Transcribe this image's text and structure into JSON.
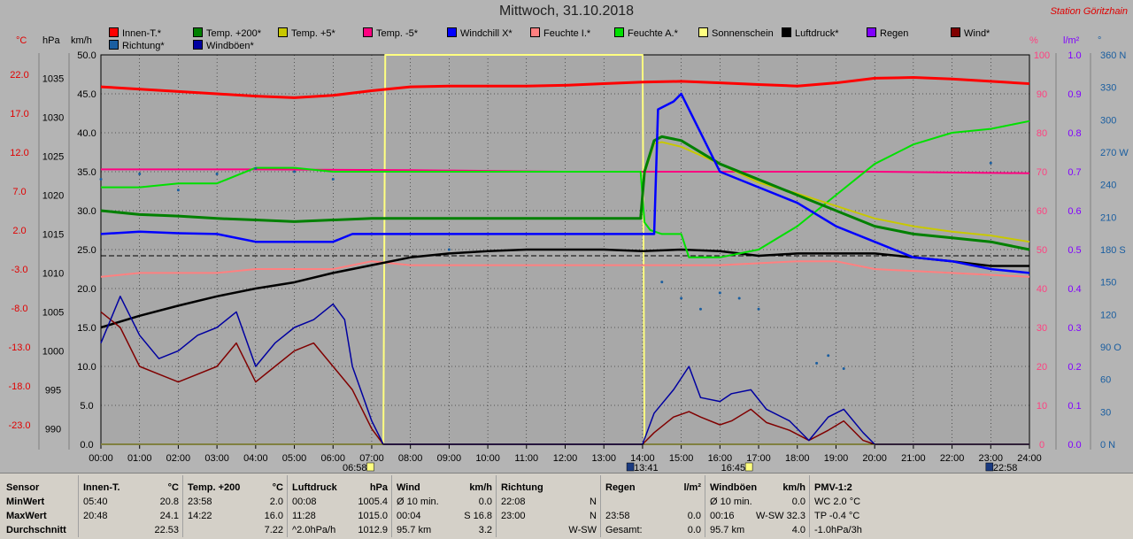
{
  "header": {
    "title": "Mittwoch, 31.10.2018",
    "station": "Station Göritzhain"
  },
  "legend": [
    {
      "label": "Innen-T.*",
      "color": "#ff0000"
    },
    {
      "label": "Temp. +200*",
      "color": "#008000"
    },
    {
      "label": "Temp. +5*",
      "color": "#c8c800"
    },
    {
      "label": "Temp. -5*",
      "color": "#ff0080"
    },
    {
      "label": "Windchill X*",
      "color": "#0000ff"
    },
    {
      "label": "Feuchte I.*",
      "color": "#ff8080"
    },
    {
      "label": "Feuchte A.*",
      "color": "#00e000"
    },
    {
      "label": "Sonnenschein",
      "color": "#ffff80"
    },
    {
      "label": "Luftdruck*",
      "color": "#000000"
    },
    {
      "label": "Regen",
      "color": "#8000ff"
    },
    {
      "label": "Wind*",
      "color": "#800000"
    },
    {
      "label": "Richtung*",
      "color": "#1a5ea0"
    },
    {
      "label": "Windböen*",
      "color": "#0000a0"
    }
  ],
  "axis_heads": {
    "celsius": "°C",
    "hpa": "hPa",
    "kmh": "km/h",
    "percent": "%",
    "rain": "l/m²",
    "degree": "°"
  },
  "chart_data": {
    "type": "line",
    "x_range": [
      "00:00",
      "24:00"
    ],
    "x_ticks": [
      "00:00",
      "01:00",
      "02:00",
      "03:00",
      "04:00",
      "05:00",
      "06:00",
      "07:00",
      "08:00",
      "09:00",
      "10:00",
      "11:00",
      "12:00",
      "13:00",
      "14:00",
      "15:00",
      "16:00",
      "17:00",
      "18:00",
      "19:00",
      "20:00",
      "21:00",
      "22:00",
      "23:00",
      "24:00"
    ],
    "sun_markers": [
      "06:58",
      "13:41",
      "16:45",
      "22:58"
    ],
    "axes": {
      "temperature_c": {
        "ticks": [
          "22.0",
          "17.0",
          "12.0",
          "7.0",
          "2.0",
          "-3.0",
          "-8.0",
          "-13.0",
          "-18.0",
          "-23.0"
        ],
        "range": [
          -23.0,
          27.0
        ]
      },
      "pressure_hpa": {
        "ticks": [
          "1035",
          "1030",
          "1025",
          "1020",
          "1015",
          "1010",
          "1005",
          "1000",
          "995",
          "990"
        ],
        "range": [
          990,
          1040
        ]
      },
      "wind_kmh": {
        "ticks": [
          "50.0",
          "45.0",
          "40.0",
          "35.0",
          "30.0",
          "25.0",
          "20.0",
          "15.0",
          "10.0",
          "5.0",
          "0.0"
        ],
        "range": [
          0,
          50
        ]
      },
      "humidity_pct": {
        "ticks": [
          "100",
          "90",
          "80",
          "70",
          "60",
          "50",
          "40",
          "30",
          "20",
          "10",
          "0"
        ],
        "range": [
          0,
          100
        ]
      },
      "rain_lm2": {
        "ticks": [
          "1.0",
          "0.9",
          "0.8",
          "0.7",
          "0.6",
          "0.5",
          "0.4",
          "0.3",
          "0.2",
          "0.1",
          "0.0"
        ],
        "range": [
          0,
          1.0
        ]
      },
      "direction_deg": {
        "ticks": [
          "360 N",
          "330",
          "300",
          "270 W",
          "240",
          "210",
          "180 S",
          "150",
          "120",
          "90 O",
          "60",
          "30",
          "0 N"
        ],
        "range": [
          0,
          360
        ]
      }
    },
    "series": [
      {
        "name": "Innen-T.*",
        "axis": "temperature_c",
        "color": "#ff0000",
        "x": [
          0,
          1,
          2,
          3,
          4,
          5,
          6,
          7,
          8,
          9,
          10,
          11,
          12,
          13,
          14,
          15,
          16,
          17,
          18,
          19,
          20,
          21,
          22,
          23,
          24
        ],
        "y": [
          22.9,
          22.6,
          22.3,
          22.0,
          21.7,
          21.5,
          21.8,
          22.4,
          22.9,
          23.0,
          23.0,
          23.0,
          23.1,
          23.3,
          23.5,
          23.6,
          23.4,
          23.2,
          23.0,
          23.4,
          24.0,
          24.1,
          23.9,
          23.6,
          23.3
        ]
      },
      {
        "name": "Temp. +200*",
        "axis": "temperature_c",
        "color": "#008000",
        "x": [
          0,
          1,
          2,
          3,
          4,
          5,
          6,
          7,
          8,
          9,
          10,
          11,
          12,
          13,
          13.95,
          14.05,
          14.3,
          14.5,
          15,
          16,
          17,
          18,
          19,
          20,
          21,
          22,
          23,
          24
        ],
        "y": [
          7.0,
          6.5,
          6.3,
          6.0,
          5.8,
          5.6,
          5.8,
          6.0,
          6.0,
          6.0,
          6.0,
          6.0,
          6.0,
          6.0,
          6.0,
          12.0,
          16.0,
          16.5,
          16.0,
          13.0,
          11.0,
          9.0,
          7.0,
          5.0,
          4.0,
          3.5,
          3.0,
          2.0
        ]
      },
      {
        "name": "Temp. +5*",
        "axis": "temperature_c",
        "color": "#c8c800",
        "x": [
          0,
          1,
          2,
          3,
          4,
          5,
          6,
          7,
          8,
          9,
          10,
          11,
          12,
          13,
          13.95,
          14.05,
          14.3,
          14.5,
          15,
          16,
          17,
          18,
          19,
          20,
          21,
          22,
          23,
          24
        ],
        "y": [
          7.0,
          6.5,
          6.3,
          6.0,
          5.8,
          5.6,
          5.8,
          6.0,
          6.0,
          6.0,
          6.0,
          6.0,
          6.0,
          6.0,
          6.0,
          11.8,
          15.6,
          15.8,
          15.2,
          13.0,
          10.6,
          9.2,
          7.6,
          6.0,
          5.0,
          4.3,
          3.8,
          3.0
        ]
      },
      {
        "name": "Temp. -5*",
        "axis": "temperature_c",
        "color": "#ff0080",
        "x": [
          0,
          4,
          8,
          12,
          16,
          20,
          24
        ],
        "y": [
          12.3,
          12.3,
          12.2,
          12.0,
          12.0,
          12.0,
          11.8
        ]
      },
      {
        "name": "Windchill X*",
        "axis": "temperature_c",
        "color": "#0000ff",
        "x": [
          0,
          1,
          2,
          3,
          4,
          5,
          6,
          6.5,
          7,
          10,
          13,
          14.3,
          14.4,
          14.8,
          15,
          15.4,
          16,
          17,
          18,
          19,
          20,
          21,
          22,
          23,
          24
        ],
        "y": [
          4.0,
          4.3,
          4.1,
          4.0,
          3.0,
          3.0,
          3.0,
          4.0,
          4.0,
          4.0,
          4.0,
          4.0,
          20.0,
          21.0,
          22.0,
          18.0,
          12.0,
          10.0,
          8.0,
          5.0,
          3.0,
          1.0,
          0.5,
          -0.5,
          -1.0
        ]
      },
      {
        "name": "Feuchte I.*",
        "axis": "humidity_pct",
        "color": "#ff8080",
        "x": [
          0,
          1,
          2,
          3,
          4,
          5,
          6,
          7,
          8,
          10,
          12,
          14,
          16,
          18,
          19,
          20,
          22,
          24
        ],
        "y": [
          43,
          44,
          44,
          44,
          45,
          45,
          45,
          47,
          46,
          46,
          46,
          46,
          46,
          47,
          47,
          45,
          44,
          43
        ]
      },
      {
        "name": "Feuchte A.*",
        "axis": "humidity_pct",
        "color": "#00e000",
        "x": [
          0,
          1,
          2,
          3,
          4,
          5,
          6,
          7,
          8,
          10,
          12,
          13.95,
          14.05,
          14.2,
          14.5,
          15,
          15.2,
          16,
          17,
          18,
          19,
          20,
          21,
          22,
          23,
          24
        ],
        "y": [
          66,
          66,
          67,
          67,
          71,
          71,
          70,
          70,
          70,
          70,
          70,
          70,
          57,
          55,
          54,
          54,
          48,
          48,
          50,
          56,
          64,
          72,
          77,
          80,
          81,
          83
        ]
      },
      {
        "name": "Sonnenschein",
        "axis": "wind_kmh",
        "color": "#ffff80",
        "x": [
          0,
          7.3,
          7.35,
          14.0,
          14.05,
          24
        ],
        "y": [
          0,
          0,
          50,
          50,
          0,
          0
        ]
      },
      {
        "name": "Luftdruck*",
        "axis": "pressure_hpa",
        "color": "#000000",
        "x": [
          0,
          1,
          2,
          3,
          4,
          5,
          6,
          7,
          8,
          9,
          10,
          11,
          12,
          13,
          14,
          15,
          16,
          17,
          18,
          19,
          20,
          21,
          22,
          23,
          24
        ],
        "y": [
          1005.0,
          1006.5,
          1007.8,
          1009.0,
          1010.0,
          1010.8,
          1012.0,
          1013.0,
          1014.0,
          1014.5,
          1014.8,
          1015.0,
          1015.0,
          1015.0,
          1014.8,
          1015.0,
          1014.8,
          1014.2,
          1014.5,
          1014.5,
          1014.5,
          1014.0,
          1013.5,
          1012.9,
          1012.9
        ]
      },
      {
        "name": "Wind*",
        "axis": "wind_kmh",
        "color": "#800000",
        "x": [
          0,
          0.5,
          1,
          1.5,
          2,
          2.5,
          3,
          3.5,
          4,
          4.5,
          5,
          5.5,
          6,
          6.5,
          7,
          7.3,
          8,
          10,
          14,
          14.3,
          14.8,
          15.2,
          15.5,
          16,
          16.3,
          16.8,
          17.2,
          17.8,
          18.3,
          18.8,
          19.2,
          19.7,
          20,
          24
        ],
        "y": [
          17,
          15,
          10,
          9,
          8,
          9,
          10,
          13,
          8,
          10,
          12,
          13,
          10,
          7,
          2,
          0,
          0,
          0,
          0,
          1.5,
          3.5,
          4.2,
          3.5,
          2.5,
          3.0,
          4.5,
          2.8,
          1.8,
          0.5,
          1.8,
          3.0,
          0.5,
          0,
          0
        ]
      },
      {
        "name": "Windböen*",
        "axis": "wind_kmh",
        "color": "#0000a0",
        "x": [
          0,
          0.5,
          1,
          1.5,
          2,
          2.5,
          3,
          3.5,
          4,
          4.5,
          5,
          5.5,
          6,
          6.3,
          6.5,
          7,
          7.3,
          8,
          10,
          14,
          14.3,
          14.8,
          15.2,
          15.5,
          16,
          16.3,
          16.8,
          17.2,
          17.8,
          18.3,
          18.8,
          19.2,
          19.7,
          20,
          24
        ],
        "y": [
          13,
          19,
          14,
          11,
          12,
          14,
          15,
          17,
          10,
          13,
          15,
          16,
          18,
          16,
          10,
          3,
          0,
          0,
          0,
          0,
          4,
          7,
          10,
          6,
          5.5,
          6.5,
          7.0,
          4.5,
          3.0,
          0.5,
          3.5,
          4.5,
          1.5,
          0,
          0
        ]
      },
      {
        "name": "Richtung*",
        "axis": "direction_deg",
        "color": "#1a5ea0",
        "x": [
          0,
          1,
          2,
          3,
          4,
          5,
          6,
          9,
          14.5,
          15,
          15.5,
          16,
          16.5,
          17,
          18.5,
          18.8,
          19.2,
          23.0
        ],
        "y": [
          245,
          250,
          235,
          250,
          255,
          252,
          245,
          180,
          150,
          135,
          125,
          140,
          135,
          125,
          75,
          82,
          70,
          260
        ]
      },
      {
        "name": "Regen",
        "axis": "rain_lm2",
        "color": "#8000ff",
        "x": [
          0,
          24
        ],
        "y": [
          0,
          0
        ]
      }
    ]
  },
  "stats": {
    "row_labels": [
      "Sensor",
      "MinWert",
      "MaxWert",
      "Durchschnitt"
    ],
    "groups": [
      {
        "header": [
          "Innen-T.",
          "°C"
        ],
        "rows": [
          [
            "05:40",
            "20.8"
          ],
          [
            "20:48",
            "24.1"
          ],
          [
            "",
            "22.53"
          ]
        ]
      },
      {
        "header": [
          "Temp. +200",
          "°C"
        ],
        "rows": [
          [
            "23:58",
            "2.0"
          ],
          [
            "14:22",
            "16.0"
          ],
          [
            "",
            "7.22"
          ]
        ]
      },
      {
        "header": [
          "Luftdruck",
          "hPa"
        ],
        "rows": [
          [
            "00:08",
            "1005.4"
          ],
          [
            "11:28",
            "1015.0"
          ],
          [
            "^2.0hPa/h",
            "1012.9"
          ]
        ]
      },
      {
        "header": [
          "Wind",
          "km/h"
        ],
        "rows": [
          [
            "Ø 10 min.",
            "0.0"
          ],
          [
            "00:04",
            "S 16.8"
          ],
          [
            "95.7 km",
            "3.2"
          ]
        ]
      },
      {
        "header": [
          "Richtung",
          ""
        ],
        "rows": [
          [
            "22:08",
            "N"
          ],
          [
            "23:00",
            "N"
          ],
          [
            "",
            "W-SW"
          ]
        ]
      },
      {
        "header": [
          "Regen",
          "l/m²"
        ],
        "rows": [
          [
            "",
            ""
          ],
          [
            "23:58",
            "0.0"
          ],
          [
            "Gesamt:",
            "0.0"
          ]
        ]
      },
      {
        "header": [
          "Windböen",
          "km/h"
        ],
        "rows": [
          [
            "Ø 10 min.",
            "0.0"
          ],
          [
            "00:16",
            "W-SW 32.3"
          ],
          [
            "95.7 km",
            "4.0"
          ]
        ]
      },
      {
        "header": [
          "PMV-1:2",
          ""
        ],
        "rows": [
          [
            "WC 2.0 °C",
            ""
          ],
          [
            "TP -0.4 °C",
            ""
          ],
          [
            "-1.0hPa/3h",
            ""
          ]
        ]
      }
    ]
  }
}
